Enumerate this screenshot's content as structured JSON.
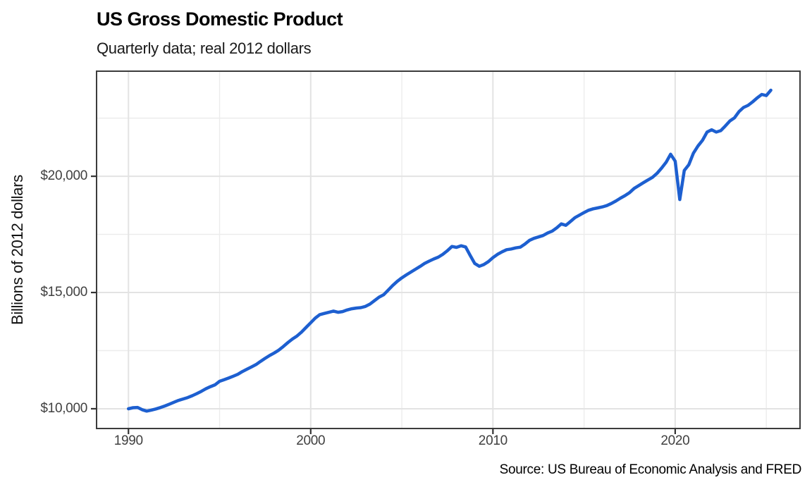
{
  "header": {
    "title": "US Gross Domestic Product",
    "subtitle": "Quarterly data; real 2012 dollars"
  },
  "caption": {
    "source": "Source: US Bureau of Economic Analysis and FRED"
  },
  "colors": {
    "line": "#1d5fd0",
    "grid_major": "#e3e3e3",
    "grid_minor": "#ececec",
    "panel_border": "#3c3c3c",
    "tick_mark": "#333333",
    "tick_label": "#404040"
  },
  "chart_data": {
    "type": "line",
    "title": "US Gross Domestic Product",
    "subtitle": "Quarterly data; real 2012 dollars",
    "caption": "Source: US Bureau of Economic Analysis and FRED",
    "xlabel": "",
    "ylabel": "Billions of 2012 dollars",
    "x_unit": "year",
    "frequency": "quarterly",
    "x_start": 1990,
    "x_step": 0.25,
    "xlim": [
      1988.25,
      2026.85
    ],
    "ylim": [
      9150,
      24520
    ],
    "grid": true,
    "legend_position": "none",
    "x_ticks": [
      {
        "v": 1990,
        "label": "1990"
      },
      {
        "v": 2000,
        "label": "2000"
      },
      {
        "v": 2010,
        "label": "2010"
      },
      {
        "v": 2020,
        "label": "2020"
      }
    ],
    "y_ticks": [
      {
        "v": 10000,
        "label": "$10,000"
      },
      {
        "v": 15000,
        "label": "$15,000"
      },
      {
        "v": 20000,
        "label": "$20,000"
      }
    ],
    "x_minor_gridlines": [
      1995,
      2005,
      2015,
      2025
    ],
    "y_minor_gridlines": [
      12500,
      17500,
      22500
    ],
    "series": [
      {
        "name": "Real GDP, billions of 2012 dollars",
        "color": "#1d5fd0",
        "values": [
          10000,
          10045,
          10055,
          9960,
          9900,
          9940,
          9990,
          10050,
          10120,
          10200,
          10280,
          10360,
          10420,
          10480,
          10560,
          10650,
          10750,
          10860,
          10950,
          11030,
          11180,
          11250,
          11320,
          11400,
          11480,
          11600,
          11700,
          11800,
          11900,
          12040,
          12170,
          12290,
          12400,
          12520,
          12680,
          12850,
          13000,
          13130,
          13300,
          13500,
          13700,
          13900,
          14050,
          14100,
          14150,
          14200,
          14150,
          14180,
          14250,
          14300,
          14330,
          14350,
          14400,
          14500,
          14650,
          14800,
          14900,
          15100,
          15300,
          15480,
          15630,
          15760,
          15880,
          16000,
          16120,
          16250,
          16350,
          16440,
          16520,
          16640,
          16800,
          16980,
          16940,
          17010,
          16960,
          16600,
          16250,
          16130,
          16200,
          16330,
          16500,
          16640,
          16750,
          16840,
          16870,
          16920,
          16950,
          17080,
          17240,
          17330,
          17390,
          17450,
          17560,
          17640,
          17780,
          17950,
          17890,
          18050,
          18220,
          18330,
          18440,
          18540,
          18600,
          18640,
          18680,
          18740,
          18830,
          18940,
          19060,
          19170,
          19300,
          19480,
          19600,
          19720,
          19840,
          19950,
          20120,
          20350,
          20600,
          20950,
          20650,
          19000,
          20250,
          20500,
          20990,
          21300,
          21550,
          21900,
          22000,
          21900,
          21960,
          22160,
          22380,
          22510,
          22780,
          22960,
          23050,
          23200,
          23370,
          23520,
          23470,
          23700
        ]
      }
    ]
  }
}
